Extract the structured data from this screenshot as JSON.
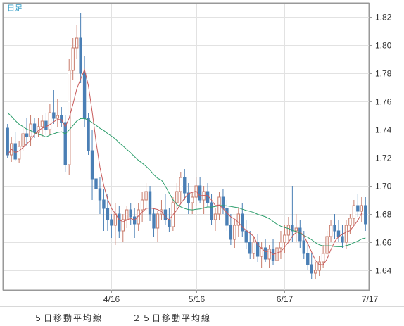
{
  "chart_data": {
    "type": "candlestick",
    "period_label": "日足",
    "y_ticks": [
      "1.82",
      "1.80",
      "1.78",
      "1.76",
      "1.74",
      "1.72",
      "1.70",
      "1.68",
      "1.66",
      "1.64"
    ],
    "ylim": [
      1.626,
      1.83
    ],
    "x_ticks": [
      {
        "label": "4/16",
        "index": 27
      },
      {
        "label": "5/16",
        "index": 49
      },
      {
        "label": "6/17",
        "index": 72
      },
      {
        "label": "7/17",
        "index": 94
      }
    ],
    "legend": [
      {
        "label": "５日移動平均線",
        "color": "#c85a5a"
      },
      {
        "label": "２５日移動平均線",
        "color": "#2a9d6a"
      }
    ],
    "up_color": "#c87c6c",
    "down_color": "#4a7fb5",
    "candles": [
      [
        1.741,
        1.744,
        1.72,
        1.722
      ],
      [
        1.722,
        1.735,
        1.717,
        1.73
      ],
      [
        1.73,
        1.738,
        1.718,
        1.719
      ],
      [
        1.719,
        1.732,
        1.716,
        1.728
      ],
      [
        1.728,
        1.742,
        1.725,
        1.737
      ],
      [
        1.737,
        1.748,
        1.728,
        1.735
      ],
      [
        1.735,
        1.75,
        1.728,
        1.744
      ],
      [
        1.744,
        1.748,
        1.734,
        1.738
      ],
      [
        1.738,
        1.748,
        1.735,
        1.742
      ],
      [
        1.742,
        1.75,
        1.735,
        1.746
      ],
      [
        1.746,
        1.752,
        1.736,
        1.74
      ],
      [
        1.74,
        1.758,
        1.736,
        1.752
      ],
      [
        1.752,
        1.768,
        1.744,
        1.748
      ],
      [
        1.748,
        1.762,
        1.742,
        1.75
      ],
      [
        1.75,
        1.756,
        1.742,
        1.745
      ],
      [
        1.745,
        1.75,
        1.71,
        1.715
      ],
      [
        1.715,
        1.79,
        1.708,
        1.782
      ],
      [
        1.782,
        1.805,
        1.775,
        1.798
      ],
      [
        1.798,
        1.814,
        1.79,
        1.805
      ],
      [
        1.805,
        1.823,
        1.773,
        1.78
      ],
      [
        1.78,
        1.792,
        1.742,
        1.748
      ],
      [
        1.748,
        1.752,
        1.722,
        1.725
      ],
      [
        1.725,
        1.74,
        1.69,
        1.705
      ],
      [
        1.705,
        1.712,
        1.69,
        1.698
      ],
      [
        1.698,
        1.706,
        1.68,
        1.69
      ],
      [
        1.69,
        1.698,
        1.668,
        1.684
      ],
      [
        1.684,
        1.694,
        1.668,
        1.676
      ],
      [
        1.676,
        1.68,
        1.663,
        1.672
      ],
      [
        1.672,
        1.688,
        1.658,
        1.68
      ],
      [
        1.68,
        1.686,
        1.663,
        1.668
      ],
      [
        1.668,
        1.68,
        1.66,
        1.676
      ],
      [
        1.676,
        1.686,
        1.67,
        1.683
      ],
      [
        1.683,
        1.688,
        1.672,
        1.678
      ],
      [
        1.678,
        1.684,
        1.663,
        1.673
      ],
      [
        1.673,
        1.688,
        1.668,
        1.683
      ],
      [
        1.683,
        1.696,
        1.674,
        1.69
      ],
      [
        1.69,
        1.702,
        1.682,
        1.696
      ],
      [
        1.696,
        1.7,
        1.675,
        1.68
      ],
      [
        1.68,
        1.684,
        1.664,
        1.67
      ],
      [
        1.67,
        1.682,
        1.66,
        1.68
      ],
      [
        1.68,
        1.69,
        1.676,
        1.683
      ],
      [
        1.683,
        1.694,
        1.672,
        1.676
      ],
      [
        1.676,
        1.684,
        1.667,
        1.671
      ],
      [
        1.671,
        1.692,
        1.668,
        1.688
      ],
      [
        1.688,
        1.702,
        1.682,
        1.696
      ],
      [
        1.696,
        1.71,
        1.688,
        1.706
      ],
      [
        1.706,
        1.712,
        1.69,
        1.695
      ],
      [
        1.695,
        1.702,
        1.68,
        1.688
      ],
      [
        1.688,
        1.696,
        1.68,
        1.692
      ],
      [
        1.692,
        1.706,
        1.686,
        1.7
      ],
      [
        1.7,
        1.706,
        1.688,
        1.69
      ],
      [
        1.69,
        1.7,
        1.68,
        1.696
      ],
      [
        1.696,
        1.702,
        1.685,
        1.688
      ],
      [
        1.688,
        1.694,
        1.672,
        1.676
      ],
      [
        1.676,
        1.684,
        1.668,
        1.68
      ],
      [
        1.68,
        1.696,
        1.676,
        1.692
      ],
      [
        1.692,
        1.698,
        1.68,
        1.684
      ],
      [
        1.684,
        1.69,
        1.668,
        1.672
      ],
      [
        1.672,
        1.68,
        1.658,
        1.662
      ],
      [
        1.662,
        1.676,
        1.656,
        1.672
      ],
      [
        1.672,
        1.684,
        1.664,
        1.68
      ],
      [
        1.68,
        1.688,
        1.664,
        1.668
      ],
      [
        1.668,
        1.676,
        1.655,
        1.66
      ],
      [
        1.66,
        1.668,
        1.648,
        1.652
      ],
      [
        1.652,
        1.664,
        1.648,
        1.66
      ],
      [
        1.66,
        1.666,
        1.646,
        1.65
      ],
      [
        1.65,
        1.66,
        1.642,
        1.656
      ],
      [
        1.656,
        1.662,
        1.646,
        1.648
      ],
      [
        1.648,
        1.658,
        1.642,
        1.655
      ],
      [
        1.655,
        1.662,
        1.644,
        1.647
      ],
      [
        1.647,
        1.66,
        1.642,
        1.656
      ],
      [
        1.656,
        1.668,
        1.648,
        1.66
      ],
      [
        1.66,
        1.672,
        1.652,
        1.665
      ],
      [
        1.665,
        1.678,
        1.66,
        1.672
      ],
      [
        1.672,
        1.7,
        1.66,
        1.668
      ],
      [
        1.668,
        1.68,
        1.66,
        1.67
      ],
      [
        1.67,
        1.676,
        1.656,
        1.661
      ],
      [
        1.661,
        1.668,
        1.648,
        1.652
      ],
      [
        1.652,
        1.66,
        1.64,
        1.644
      ],
      [
        1.644,
        1.652,
        1.634,
        1.638
      ],
      [
        1.638,
        1.646,
        1.634,
        1.64
      ],
      [
        1.64,
        1.65,
        1.636,
        1.646
      ],
      [
        1.646,
        1.658,
        1.642,
        1.652
      ],
      [
        1.652,
        1.668,
        1.648,
        1.664
      ],
      [
        1.664,
        1.676,
        1.66,
        1.672
      ],
      [
        1.672,
        1.68,
        1.662,
        1.668
      ],
      [
        1.668,
        1.676,
        1.66,
        1.664
      ],
      [
        1.664,
        1.672,
        1.656,
        1.66
      ],
      [
        1.66,
        1.676,
        1.655,
        1.672
      ],
      [
        1.672,
        1.68,
        1.666,
        1.677
      ],
      [
        1.677,
        1.69,
        1.672,
        1.686
      ],
      [
        1.686,
        1.694,
        1.678,
        1.682
      ],
      [
        1.682,
        1.692,
        1.674,
        1.686
      ],
      [
        1.686,
        1.692,
        1.668,
        1.673
      ]
    ]
  }
}
